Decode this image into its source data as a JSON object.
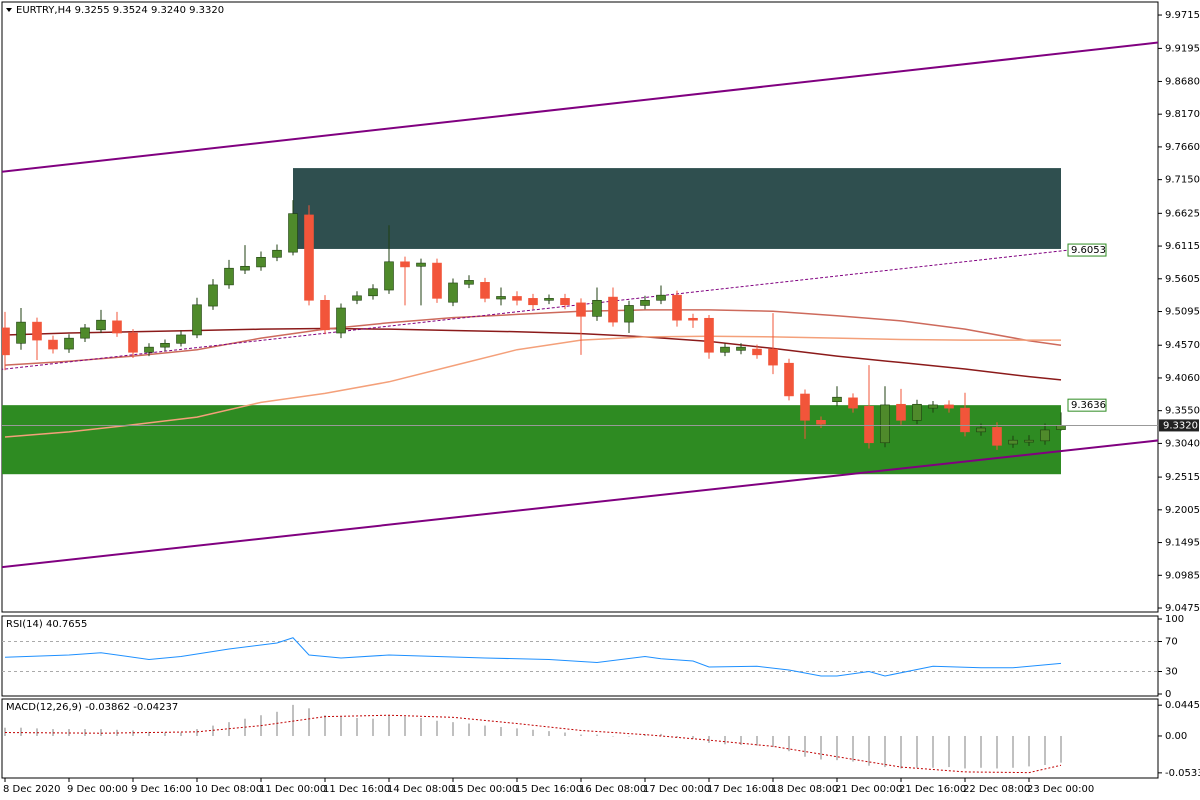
{
  "chart_data": {
    "type": "candlestick",
    "title": "EURTRY,H4  9.3255 9.3524 9.3240 9.3320",
    "categories": [
      "8 Dec 2020",
      null,
      null,
      null,
      "9 Dec 00:00",
      null,
      null,
      null,
      "9 Dec 16:00",
      null,
      null,
      null,
      "10 Dec 08:00",
      null,
      null,
      null,
      "11 Dec 00:00",
      null,
      null,
      null,
      "11 Dec 16:00",
      null,
      null,
      null,
      "14 Dec 08:00",
      null,
      null,
      null,
      "15 Dec 00:00",
      null,
      null,
      null,
      "15 Dec 16:00",
      null,
      null,
      null,
      "16 Dec 08:00",
      null,
      null,
      null,
      "17 Dec 00:00",
      null,
      null,
      null,
      "17 Dec 16:00",
      null,
      null,
      null,
      "18 Dec 08:00",
      null,
      null,
      null,
      "21 Dec 00:00",
      null,
      null,
      null,
      "21 Dec 16:00",
      null,
      null,
      null,
      "22 Dec 08:00",
      null,
      null,
      null,
      "23 Dec 00:00",
      null,
      null
    ],
    "open": [
      9.484,
      9.46,
      9.493,
      9.465,
      9.451,
      9.468,
      9.481,
      9.495,
      9.476,
      9.446,
      9.454,
      9.46,
      9.473,
      9.518,
      9.551,
      9.574,
      9.579,
      9.594,
      9.602,
      9.66,
      9.527,
      9.476,
      9.527,
      9.534,
      9.543,
      9.587,
      9.58,
      9.585,
      9.524,
      9.552,
      9.555,
      9.529,
      9.533,
      9.53,
      9.527,
      9.53,
      9.523,
      9.502,
      9.532,
      9.493,
      9.519,
      9.527,
      9.535,
      9.499,
      9.499,
      9.446,
      9.449,
      9.451,
      9.451,
      9.429,
      9.381,
      9.34,
      9.369,
      9.375,
      9.362,
      9.305,
      9.365,
      9.34,
      9.359,
      9.364,
      9.359,
      9.322,
      9.329,
      9.303,
      9.306,
      9.308,
      9.3255
    ],
    "high": [
      9.509,
      9.515,
      9.5,
      9.472,
      9.474,
      9.49,
      9.512,
      9.509,
      9.482,
      9.46,
      9.466,
      9.48,
      9.531,
      9.56,
      9.59,
      9.613,
      9.603,
      9.614,
      9.683,
      9.675,
      9.535,
      9.522,
      9.541,
      9.552,
      9.644,
      9.595,
      9.592,
      9.592,
      9.561,
      9.566,
      9.562,
      9.547,
      9.541,
      9.537,
      9.536,
      9.537,
      9.53,
      9.547,
      9.547,
      9.526,
      9.534,
      9.55,
      9.542,
      9.506,
      9.504,
      9.46,
      9.46,
      9.458,
      9.507,
      9.436,
      9.388,
      9.346,
      9.393,
      9.382,
      9.426,
      9.393,
      9.389,
      9.372,
      9.37,
      9.371,
      9.383,
      9.335,
      9.337,
      9.316,
      9.317,
      9.335,
      9.3524
    ],
    "low": [
      9.418,
      9.45,
      9.434,
      9.444,
      9.445,
      9.462,
      9.476,
      9.47,
      9.437,
      9.44,
      9.448,
      9.455,
      9.468,
      9.512,
      9.545,
      9.568,
      9.573,
      9.588,
      9.597,
      9.519,
      9.474,
      9.468,
      9.521,
      9.528,
      9.537,
      9.519,
      9.519,
      9.523,
      9.518,
      9.546,
      9.524,
      9.519,
      9.519,
      9.513,
      9.521,
      9.513,
      9.442,
      9.495,
      9.486,
      9.476,
      9.513,
      9.521,
      9.486,
      9.484,
      9.436,
      9.44,
      9.443,
      9.436,
      9.412,
      9.371,
      9.311,
      9.328,
      9.362,
      9.352,
      9.296,
      9.298,
      9.333,
      9.334,
      9.352,
      9.352,
      9.315,
      9.316,
      9.294,
      9.297,
      9.3,
      9.302,
      9.324
    ],
    "close": [
      9.442,
      9.493,
      9.465,
      9.451,
      9.468,
      9.484,
      9.496,
      9.476,
      9.446,
      9.454,
      9.46,
      9.473,
      9.52,
      9.551,
      9.577,
      9.58,
      9.594,
      9.605,
      9.662,
      9.527,
      9.481,
      9.515,
      9.534,
      9.545,
      9.587,
      9.579,
      9.585,
      9.53,
      9.554,
      9.558,
      9.53,
      9.533,
      9.527,
      9.52,
      9.53,
      9.52,
      9.502,
      9.527,
      9.493,
      9.519,
      9.527,
      9.535,
      9.496,
      9.496,
      9.446,
      9.454,
      9.454,
      9.442,
      9.426,
      9.378,
      9.34,
      9.334,
      9.376,
      9.359,
      9.305,
      9.364,
      9.34,
      9.365,
      9.364,
      9.359,
      9.322,
      9.328,
      9.301,
      9.309,
      9.309,
      9.325,
      9.332
    ],
    "up_color": "#4f8a2b",
    "down_color": "#f2553a",
    "ylim": [
      9.0413,
      9.9918
    ],
    "yticks": [
      9.9715,
      9.9195,
      {
        "value": 9.868,
        "label": "9.8680"
      },
      {
        "value": 9.817,
        "label": "9.8170"
      },
      {
        "value": 9.766,
        "label": "9.7660"
      },
      {
        "value": 9.715,
        "label": "9.7150"
      },
      9.6625,
      9.6115,
      9.5605,
      9.5095,
      {
        "value": 9.457,
        "label": "9.4570"
      },
      {
        "value": 9.406,
        "label": "9.4060"
      },
      {
        "value": 9.355,
        "label": "9.3550"
      },
      {
        "value": 9.304,
        "label": "9.3040"
      },
      9.2515,
      9.2005,
      9.1495,
      9.0985,
      9.0475
    ],
    "last": {
      "value": 9.332,
      "label": "9.3320"
    },
    "zones": [
      {
        "from": 9.607,
        "to": 9.733,
        "start": 18,
        "end": 66,
        "color": "#2f4f4f"
      },
      {
        "from": 9.256,
        "to": 9.3636,
        "start": -0.2,
        "end": 66,
        "color": "#2e8b22"
      }
    ],
    "trendlines": [
      {
        "x": [
          -0.3,
          72.2
        ],
        "values": [
          9.727,
          9.929
        ],
        "color": "#800080",
        "dashed": false
      },
      {
        "x": [
          -0.3,
          72.2
        ],
        "values": [
          9.111,
          9.309
        ],
        "color": "#800080",
        "dashed": false
      },
      {
        "x": [
          -0.3,
          66.5
        ],
        "values": [
          9.419,
          9.6053
        ],
        "color": "#800080",
        "dashed": true
      }
    ],
    "moving_averages": [
      {
        "color": "#8b1a1a",
        "x": [
          0,
          4,
          8,
          12,
          16,
          20,
          24,
          28,
          32,
          36,
          40,
          44,
          48,
          52,
          56,
          60,
          64,
          66
        ],
        "values": [
          9.473,
          9.476,
          9.478,
          9.48,
          9.482,
          9.483,
          9.482,
          9.48,
          9.478,
          9.475,
          9.47,
          9.463,
          9.452,
          9.44,
          9.43,
          9.42,
          9.408,
          9.403
        ]
      },
      {
        "color": "#cd6a5c",
        "x": [
          0,
          4,
          8,
          12,
          16,
          20,
          24,
          28,
          32,
          36,
          40,
          44,
          48,
          52,
          56,
          60,
          64,
          66
        ],
        "values": [
          9.426,
          9.432,
          9.44,
          9.45,
          9.468,
          9.482,
          9.492,
          9.5,
          9.505,
          9.51,
          9.512,
          9.512,
          9.51,
          9.503,
          9.495,
          9.482,
          9.464,
          9.457
        ]
      },
      {
        "color": "#f4a07a",
        "x": [
          0,
          4,
          8,
          12,
          16,
          20,
          24,
          28,
          32,
          36,
          40,
          44,
          48,
          52,
          56,
          60,
          64,
          66
        ],
        "values": [
          9.314,
          9.322,
          9.333,
          9.345,
          9.368,
          9.382,
          9.4,
          9.425,
          9.45,
          9.465,
          9.47,
          9.471,
          9.47,
          9.468,
          9.466,
          9.465,
          9.465,
          9.465
        ]
      }
    ],
    "rsi": {
      "title": "RSI(14) 40.7655",
      "color": "#1e90ff",
      "x": [
        0,
        4,
        6,
        9,
        11,
        14,
        17,
        18,
        19,
        21,
        24,
        27,
        30,
        34,
        37,
        40,
        41,
        43,
        44,
        47,
        49,
        51,
        52,
        54,
        55,
        58,
        61,
        63,
        66
      ],
      "values": [
        49,
        52,
        55,
        46,
        50,
        60,
        68,
        75,
        52,
        48,
        52,
        50,
        48,
        46,
        42,
        50,
        47,
        44,
        36,
        37,
        32,
        24,
        24,
        30,
        24,
        37,
        35,
        35,
        40.7655
      ],
      "ylim": [
        0,
        100
      ],
      "yticks": [
        100,
        70,
        30,
        0
      ]
    },
    "macd": {
      "title": "MACD(12,26,9) -0.03862 -0.04237",
      "histogram_color": "#c0c0c0",
      "histogram": [
        0.012,
        0.012,
        0.011,
        0.01,
        0.01,
        0.01,
        0.01,
        0.009,
        0.008,
        0.006,
        0.005,
        0.005,
        0.01,
        0.015,
        0.02,
        0.025,
        0.03,
        0.035,
        0.045,
        0.04,
        0.03,
        0.028,
        0.026,
        0.025,
        0.03,
        0.028,
        0.026,
        0.022,
        0.02,
        0.018,
        0.015,
        0.013,
        0.011,
        0.009,
        0.007,
        0.005,
        0.002,
        0.002,
        0,
        0,
        0.002,
        0.003,
        -0.002,
        -0.004,
        -0.01,
        -0.012,
        -0.013,
        -0.014,
        -0.016,
        -0.022,
        -0.03,
        -0.034,
        -0.035,
        -0.037,
        -0.043,
        -0.045,
        -0.047,
        -0.046,
        -0.046,
        -0.045,
        -0.047,
        -0.046,
        -0.047,
        -0.046,
        -0.044,
        -0.042,
        -0.03862
      ],
      "signal": {
        "color": "#c00000",
        "x": [
          0,
          6,
          12,
          16,
          20,
          24,
          28,
          32,
          36,
          40,
          44,
          48,
          52,
          56,
          60,
          64,
          66
        ],
        "values": [
          0.005,
          0.004,
          0.006,
          0.015,
          0.028,
          0.03,
          0.027,
          0.018,
          0.008,
          0.002,
          -0.006,
          -0.015,
          -0.03,
          -0.045,
          -0.052,
          -0.053,
          -0.04237
        ]
      },
      "ylim": [
        -0.0608,
        0.0535
      ],
      "yticks": [
        0.04454,
        {
          "value": 0,
          "label": "0.00"
        },
        -0.05336
      ]
    }
  }
}
